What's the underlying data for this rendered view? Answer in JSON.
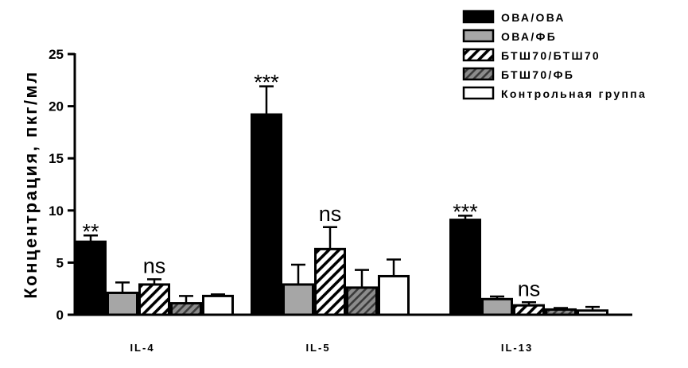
{
  "chart_data": {
    "type": "bar",
    "ylabel": "Концентрация, пкг/мл",
    "xlabel": "",
    "ylim": [
      0,
      25
    ],
    "yticks": [
      0,
      5,
      10,
      15,
      20,
      25
    ],
    "categories": [
      "IL-4",
      "IL-5",
      "IL-13"
    ],
    "series": [
      {
        "name": "ОВА/ОВА",
        "fill": "black",
        "values": [
          7.0,
          19.2,
          9.1
        ],
        "errors": [
          0.6,
          2.7,
          0.4
        ]
      },
      {
        "name": "ОВА/ФБ",
        "fill": "gray",
        "values": [
          2.1,
          2.9,
          1.5
        ],
        "errors": [
          1.0,
          1.9,
          0.25
        ]
      },
      {
        "name": "БТШ70/БТШ70",
        "fill": "hatch-white",
        "values": [
          2.9,
          6.3,
          0.9
        ],
        "errors": [
          0.5,
          2.1,
          0.3
        ]
      },
      {
        "name": "БТШ70/ФБ",
        "fill": "hatch-gray",
        "values": [
          1.1,
          2.6,
          0.5
        ],
        "errors": [
          0.7,
          1.7,
          0.15
        ]
      },
      {
        "name": "Контрольная группа",
        "fill": "white",
        "values": [
          1.8,
          3.7,
          0.4
        ],
        "errors": [
          0.15,
          1.6,
          0.35
        ]
      }
    ],
    "annotations": [
      {
        "category": "IL-4",
        "series": "ОВА/ОВА",
        "text": "**"
      },
      {
        "category": "IL-4",
        "series": "БТШ70/БТШ70",
        "text": "ns"
      },
      {
        "category": "IL-5",
        "series": "ОВА/ОВА",
        "text": "***"
      },
      {
        "category": "IL-5",
        "series": "БТШ70/БТШ70",
        "text": "ns"
      },
      {
        "category": "IL-13",
        "series": "ОВА/ОВА",
        "text": "***"
      },
      {
        "category": "IL-13",
        "series": "БТШ70/БТШ70",
        "text": "ns"
      }
    ],
    "legend": "top-right",
    "colors": {
      "black": "#000000",
      "gray": "#a6a6a6",
      "hatch_gray": "#7f7f7f",
      "white": "#ffffff"
    }
  }
}
